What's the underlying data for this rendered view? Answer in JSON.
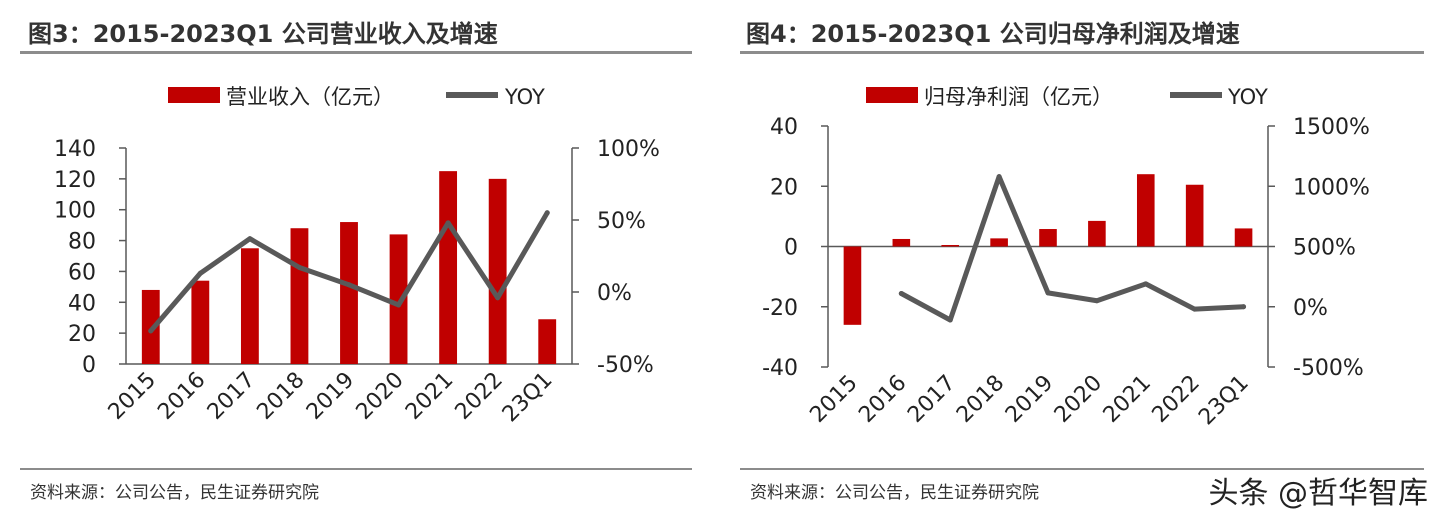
{
  "watermark": "头条 @哲华智库",
  "colors": {
    "bar": "#c00000",
    "line": "#595959",
    "axis": "#595959"
  },
  "chart_data": [
    {
      "type": "bar",
      "title": "图3：2015-2023Q1 公司营业收入及增速",
      "source": "资料来源：公司公告，民生证券研究院",
      "categories": [
        "2015",
        "2016",
        "2017",
        "2018",
        "2019",
        "2020",
        "2021",
        "2022",
        "23Q1"
      ],
      "series": [
        {
          "name": "营业收入（亿元）",
          "type": "bar",
          "axis": "left",
          "values": [
            48,
            54,
            75,
            88,
            92,
            84,
            125,
            120,
            29
          ]
        },
        {
          "name": "YOY",
          "type": "line",
          "axis": "right",
          "values": [
            -27,
            13,
            37,
            17,
            5,
            -9,
            48,
            -4,
            55
          ]
        }
      ],
      "ylim_left": [
        0,
        140
      ],
      "yticks_left": [
        "0",
        "20",
        "40",
        "60",
        "80",
        "100",
        "120",
        "140"
      ],
      "ylim_right": [
        -50,
        100
      ],
      "yticks_right": [
        "-50%",
        "0%",
        "50%",
        "100%"
      ]
    },
    {
      "type": "bar",
      "title": "图4：2015-2023Q1 公司归母净利润及增速",
      "source": "资料来源：公司公告，民生证券研究院",
      "categories": [
        "2015",
        "2016",
        "2017",
        "2018",
        "2019",
        "2020",
        "2021",
        "2022",
        "23Q1"
      ],
      "series": [
        {
          "name": "归母净利润（亿元）",
          "type": "bar",
          "axis": "left",
          "values": [
            -26,
            2.5,
            0.5,
            2.7,
            5.8,
            8.5,
            24,
            20.5,
            6
          ]
        },
        {
          "name": "YOY",
          "type": "line",
          "axis": "right",
          "values": [
            null,
            110,
            -110,
            1080,
            115,
            50,
            190,
            -20,
            0
          ]
        }
      ],
      "ylim_left": [
        -40,
        40
      ],
      "yticks_left": [
        "-40",
        "-20",
        "0",
        "20",
        "40"
      ],
      "ylim_right": [
        -500,
        1500
      ],
      "yticks_right": [
        "-500%",
        "0%",
        "500%",
        "1000%",
        "1500%"
      ]
    }
  ]
}
